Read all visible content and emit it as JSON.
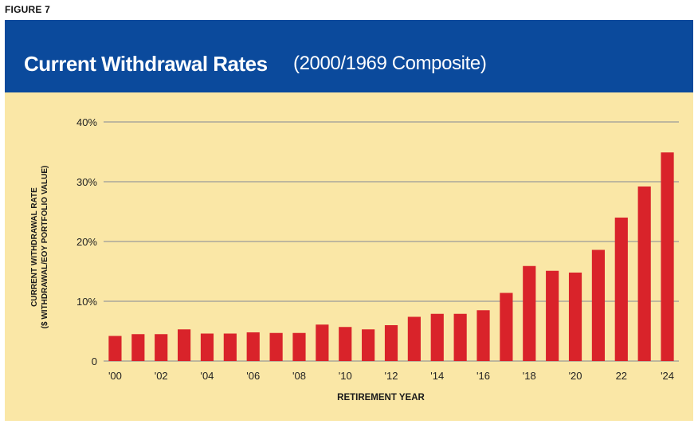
{
  "figure_label": "FIGURE 7",
  "chart_data": {
    "type": "bar",
    "title": "Current Withdrawal Rates",
    "subtitle": "(2000/1969 Composite)",
    "xlabel": "RETIREMENT YEAR",
    "ylabel_line1": "CURRENT WITHDRAWAL RATE",
    "ylabel_line2": "($ WITHDRAWAL/EOY PORTFOLIO VALUE)",
    "ylim": [
      0,
      40
    ],
    "yticks": [
      0,
      10,
      20,
      30,
      40
    ],
    "ytick_labels": [
      "0",
      "10%",
      "20%",
      "30%",
      "40%"
    ],
    "grid": true,
    "bar_color": "#d9232a",
    "categories": [
      "2000",
      "2001",
      "2002",
      "2003",
      "2004",
      "2005",
      "2006",
      "2007",
      "2008",
      "2009",
      "2010",
      "2011",
      "2012",
      "2013",
      "2014",
      "2015",
      "2016",
      "2017",
      "2018",
      "2019",
      "2020",
      "2021",
      "2022",
      "2023",
      "2024"
    ],
    "values": [
      4.2,
      4.5,
      4.5,
      5.3,
      4.6,
      4.6,
      4.8,
      4.7,
      4.7,
      6.1,
      5.7,
      5.3,
      6.0,
      7.4,
      7.9,
      7.9,
      8.5,
      11.4,
      15.9,
      15.1,
      14.8,
      18.6,
      24.0,
      29.2,
      34.9
    ],
    "xtick_labels": [
      {
        "index": 0,
        "label": "'00"
      },
      {
        "index": 2,
        "label": "'02"
      },
      {
        "index": 4,
        "label": "'04"
      },
      {
        "index": 6,
        "label": "'06"
      },
      {
        "index": 8,
        "label": "'08"
      },
      {
        "index": 10,
        "label": "'10"
      },
      {
        "index": 12,
        "label": "'12"
      },
      {
        "index": 14,
        "label": "'14"
      },
      {
        "index": 16,
        "label": "'16"
      },
      {
        "index": 18,
        "label": "'18"
      },
      {
        "index": 20,
        "label": "'20"
      },
      {
        "index": 22,
        "label": "22"
      },
      {
        "index": 24,
        "label": "'24"
      }
    ]
  }
}
